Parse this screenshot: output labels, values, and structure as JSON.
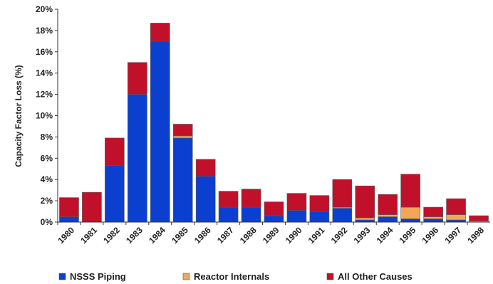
{
  "chart_data": {
    "type": "bar",
    "stacked": true,
    "title": "",
    "xlabel": "",
    "ylabel": "Capacity Factor Loss (%)",
    "ylim": [
      0,
      20
    ],
    "yticks": [
      "0%",
      "2%",
      "4%",
      "6%",
      "8%",
      "10%",
      "12%",
      "14%",
      "16%",
      "18%",
      "20%"
    ],
    "grid": false,
    "legend_position": "bottom",
    "categories": [
      "1980",
      "1981",
      "1982",
      "1983",
      "1984",
      "1985",
      "1986",
      "1987",
      "1988",
      "1989",
      "1990",
      "1991",
      "1992",
      "1993",
      "1994",
      "1995",
      "1996",
      "1997",
      "1998"
    ],
    "series": [
      {
        "name": "NSSS Piping",
        "color": "#0b3fd0",
        "values": [
          0.5,
          0.0,
          5.3,
          12.0,
          17.0,
          7.9,
          4.3,
          1.4,
          1.4,
          0.6,
          1.1,
          1.0,
          1.3,
          0.2,
          0.5,
          0.3,
          0.3,
          0.2,
          0.0
        ]
      },
      {
        "name": "Reactor Internals",
        "color": "#f2a65a",
        "values": [
          0.0,
          0.0,
          0.0,
          0.0,
          0.0,
          0.2,
          0.0,
          0.0,
          0.0,
          0.0,
          0.0,
          0.0,
          0.1,
          0.2,
          0.2,
          1.1,
          0.2,
          0.5,
          0.1
        ]
      },
      {
        "name": "All Other Causes",
        "color": "#c0102a",
        "values": [
          1.8,
          2.8,
          2.6,
          3.0,
          1.7,
          1.1,
          1.6,
          1.5,
          1.7,
          1.3,
          1.6,
          1.5,
          2.6,
          3.0,
          1.9,
          3.1,
          0.9,
          1.5,
          0.5
        ]
      }
    ]
  }
}
